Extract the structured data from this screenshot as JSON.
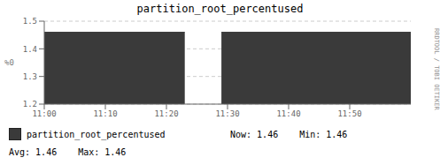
{
  "chart_data": {
    "type": "area",
    "title": "partition_root_percentused",
    "y_label": "%0",
    "x": [
      0,
      23,
      23,
      29,
      29,
      60
    ],
    "series": [
      {
        "name": "partition_root_percentused",
        "color": "#3a3a3a",
        "values": [
          1.46,
          1.46,
          null,
          null,
          1.46,
          1.46
        ]
      }
    ],
    "xlim": [
      0,
      60
    ],
    "xticks": [
      {
        "value": 0,
        "label": "11:00"
      },
      {
        "value": 10,
        "label": "11:10"
      },
      {
        "value": 20,
        "label": "11:20"
      },
      {
        "value": 30,
        "label": "11:30"
      },
      {
        "value": 40,
        "label": "11:40"
      },
      {
        "value": 50,
        "label": "11:50"
      }
    ],
    "ylim": [
      1.2,
      1.5
    ],
    "yticks": [
      1.2,
      1.3,
      1.4,
      1.5
    ],
    "grid": true,
    "annotations": [
      {
        "text": "Now:",
        "value": 1.46
      },
      {
        "text": "Min:",
        "value": 1.46
      },
      {
        "text": "Avg:",
        "value": 1.46
      },
      {
        "text": "Max:",
        "value": 1.46
      },
      {
        "text": "RRDTOOL / TOBI OETIKER"
      }
    ]
  }
}
